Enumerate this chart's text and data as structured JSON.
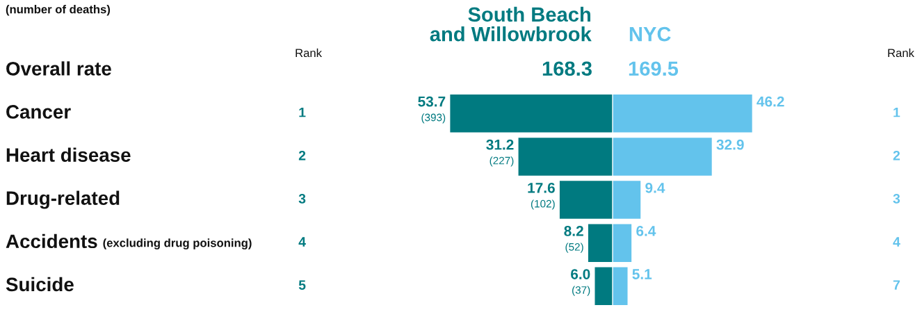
{
  "chart_data": [
    {
      "type": "bar",
      "orientation": "horizontal",
      "subtitle": "(number of deaths)",
      "categories": [
        "Overall rate",
        "Cancer",
        "Heart disease",
        "Drug-related",
        "Accidents (excluding drug poisoning)",
        "Suicide"
      ],
      "series": [
        {
          "name": "South Beach\nand Willowbrook",
          "color": "#007a80",
          "values": [
            null,
            53.7,
            31.2,
            17.6,
            8.2,
            6.0
          ],
          "value_labels": [
            null,
            "53.7\n(393)",
            "31.2\n(227)",
            "17.6\n(102)",
            "8.2\n(52)",
            "6.0\n(37)"
          ]
        }
      ],
      "annotations": [
        "Rank",
        "168.3",
        "1",
        "2",
        "3",
        "4",
        "5"
      ]
    },
    {
      "type": "bar",
      "orientation": "horizontal",
      "categories": [
        null,
        null,
        null,
        null,
        null,
        null
      ],
      "series": [
        {
          "name": "NYC",
          "color": "#63c3ec",
          "values": [
            null,
            46.2,
            32.9,
            9.4,
            6.4,
            5.1
          ],
          "value_labels": [
            null,
            "46.2",
            "32.9",
            "9.4",
            "6.4",
            "5.1"
          ]
        }
      ],
      "annotations": [
        "Rank",
        "169.5",
        "1",
        "2",
        "3",
        "4",
        "7"
      ]
    }
  ]
}
